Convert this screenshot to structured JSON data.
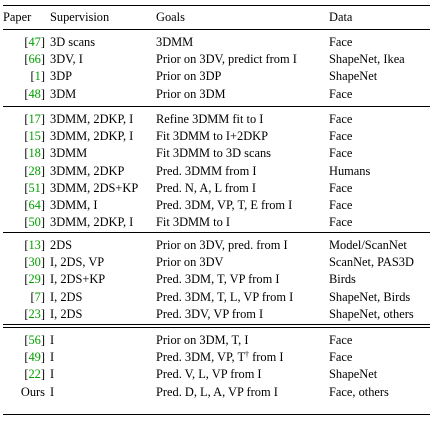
{
  "header": {
    "paper": "Paper",
    "supervision": "Supervision",
    "goals": "Goals",
    "data": "Data"
  },
  "group1": [
    {
      "cite": "47",
      "sup": "3D scans",
      "goal": "3DMM",
      "data": "Face"
    },
    {
      "cite": "66",
      "sup": "3DV, I",
      "goal": "Prior on 3DV, predict from I",
      "data": "ShapeNet, Ikea"
    },
    {
      "cite": "1",
      "sup": "3DP",
      "goal": "Prior on 3DP",
      "data": "ShapeNet"
    },
    {
      "cite": "48",
      "sup": "3DM",
      "goal": "Prior on 3DM",
      "data": "Face"
    }
  ],
  "group2": [
    {
      "cite": "17",
      "sup": "3DMM, 2DKP, I",
      "goal": "Refine 3DMM fit to I",
      "data": "Face"
    },
    {
      "cite": "15",
      "sup": "3DMM, 2DKP, I",
      "goal": "Fit 3DMM to I+2DKP",
      "data": "Face"
    },
    {
      "cite": "18",
      "sup": "3DMM",
      "goal": "Fit 3DMM to 3D scans",
      "data": "Face"
    },
    {
      "cite": "28",
      "sup": "3DMM, 2DKP",
      "goal": "Pred. 3DMM from I",
      "data": "Humans"
    },
    {
      "cite": "51",
      "sup": "3DMM, 2DS+KP",
      "goal": "Pred. N, A, L from I",
      "data": "Face"
    },
    {
      "cite": "64",
      "sup": "3DMM, I",
      "goal": "Pred. 3DM, VP, T, E from I",
      "data": "Face"
    },
    {
      "cite": "50",
      "sup": "3DMM, 2DKP, I",
      "goal": "Fit 3DMM to I",
      "data": "Face"
    }
  ],
  "group3": [
    {
      "cite": "13",
      "sup": "2DS",
      "goal": "Prior on 3DV, pred. from I",
      "data": "Model/ScanNet"
    },
    {
      "cite": "30",
      "sup": "I, 2DS, VP",
      "goal": "Prior on 3DV",
      "data": "ScanNet, PAS3D"
    },
    {
      "cite": "29",
      "sup": "I, 2DS+KP",
      "goal": "Pred. 3DM, T, VP from I",
      "data": "Birds"
    },
    {
      "cite": "7",
      "sup": "I, 2DS",
      "goal": "Pred. 3DM, T, L, VP from I",
      "data": "ShapeNet, Birds"
    },
    {
      "cite": "23",
      "sup": "I, 2DS",
      "goal": "Pred. 3DV, VP from I",
      "data": "ShapeNet, others"
    }
  ],
  "group4": [
    {
      "cite": "56",
      "sup": "I",
      "goal": "Prior on 3DM, T, I",
      "data": "Face"
    },
    {
      "cite": "49",
      "sup": "I",
      "goal": "Pred. 3DM, VP, T",
      "goal_sup": "†",
      "goal_tail": " from I",
      "data": "Face"
    },
    {
      "cite": "22",
      "sup": "I",
      "goal": "Pred. V, L, VP from I",
      "data": "ShapeNet"
    }
  ],
  "ours": {
    "paper": "Ours",
    "sup": "I",
    "goal": "Pred. D, L, A, VP from I",
    "data": "Face, others"
  }
}
